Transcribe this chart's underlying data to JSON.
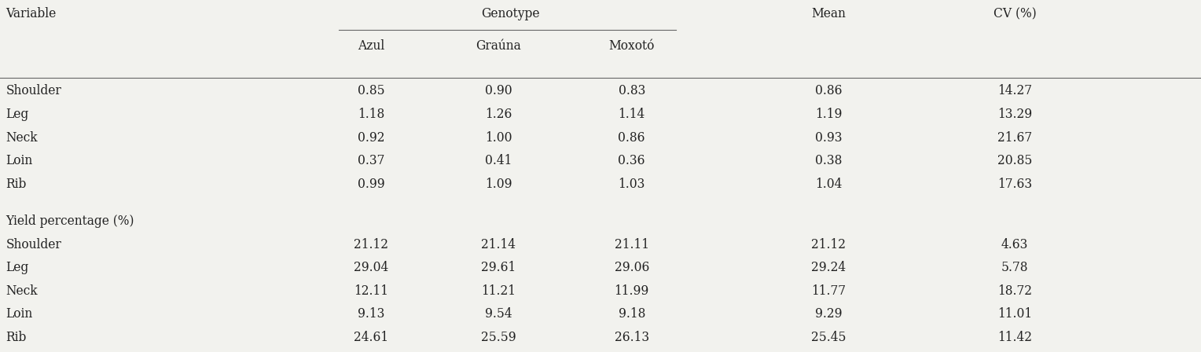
{
  "genotype_label": "Genotype",
  "subheaders": [
    "Azul",
    "Graúna",
    "Moxotó"
  ],
  "rows_section1": [
    [
      "Shoulder",
      "0.85",
      "0.90",
      "0.83",
      "0.86",
      "14.27"
    ],
    [
      "Leg",
      "1.18",
      "1.26",
      "1.14",
      "1.19",
      "13.29"
    ],
    [
      "Neck",
      "0.92",
      "1.00",
      "0.86",
      "0.93",
      "21.67"
    ],
    [
      "Loin",
      "0.37",
      "0.41",
      "0.36",
      "0.38",
      "20.85"
    ],
    [
      "Rib",
      "0.99",
      "1.09",
      "1.03",
      "1.04",
      "17.63"
    ]
  ],
  "section2_label": "Yield percentage (%)",
  "rows_section2": [
    [
      "Shoulder",
      "21.12",
      "21.14",
      "21.11",
      "21.12",
      "4.63"
    ],
    [
      "Leg",
      "29.04",
      "29.61",
      "29.06",
      "29.24",
      "5.78"
    ],
    [
      "Neck",
      "12.11",
      "11.21",
      "11.99",
      "11.77",
      "18.72"
    ],
    [
      "Loin",
      "9.13",
      "9.54",
      "9.18",
      "9.29",
      "11.01"
    ],
    [
      "Rib",
      "24.61",
      "25.59",
      "26.13",
      "25.45",
      "11.42"
    ]
  ],
  "bg_color": "#f2f2ee",
  "font_size": 11.2,
  "font_family": "DejaVu Serif",
  "col_x": {
    "variable": 0.005,
    "azul": 0.287,
    "grauna": 0.393,
    "moxoto": 0.498,
    "mean": 0.668,
    "cv": 0.82
  },
  "line_color": "#666666",
  "text_color": "#222222"
}
